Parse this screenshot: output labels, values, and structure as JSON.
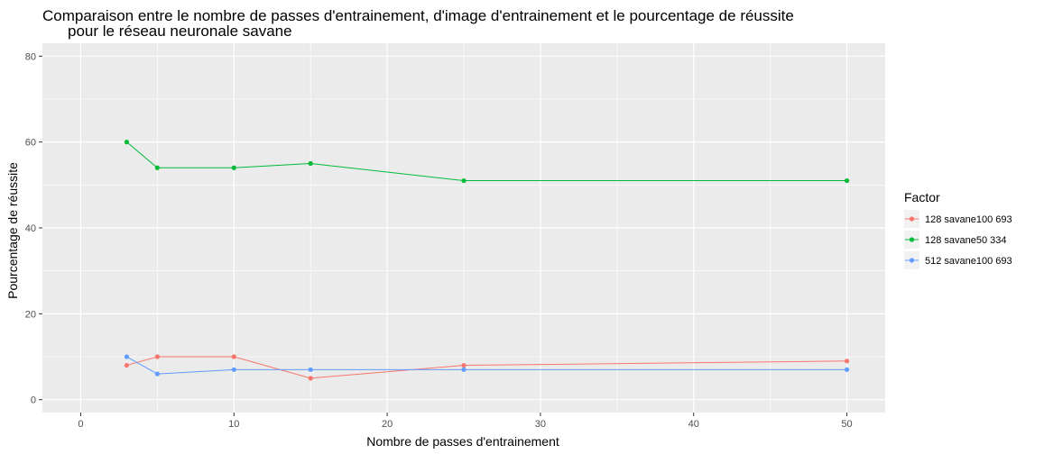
{
  "chart_data": {
    "type": "line",
    "title_lines": [
      "Comparaison entre le nombre de passes d'entrainement, d'image d'entrainement et le pourcentage de réussite",
      "pour le réseau neuronale savane"
    ],
    "xlabel": "Nombre de passes d'entrainement",
    "ylabel": "Pourcentage de réussite",
    "xlim": [
      -2.5,
      52.5
    ],
    "ylim": [
      -3,
      83
    ],
    "x_ticks": [
      0,
      10,
      20,
      30,
      40,
      50
    ],
    "y_ticks": [
      0,
      20,
      40,
      60,
      80
    ],
    "grid": true,
    "legend_position": "right",
    "legend_title": "Factor",
    "x": [
      3,
      5,
      10,
      15,
      25,
      50
    ],
    "series": [
      {
        "name": "128 savane100 693",
        "color": "#F8766D",
        "values": [
          8,
          10,
          10,
          5,
          8,
          9
        ]
      },
      {
        "name": "128 savane50 334",
        "color": "#00BA38",
        "values": [
          60,
          54,
          54,
          55,
          51,
          51
        ]
      },
      {
        "name": "512 savane100 693",
        "color": "#619CFF",
        "values": [
          10,
          6,
          7,
          7,
          7,
          7
        ]
      }
    ]
  },
  "colors": {
    "panel_background": "#EBEBEB",
    "grid_major": "#FFFFFF",
    "legend_key_background": "#F2F2F2"
  }
}
